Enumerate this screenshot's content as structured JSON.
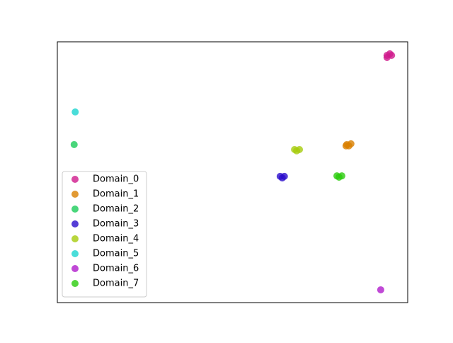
{
  "chart_data": {
    "type": "scatter",
    "xlim": [
      0,
      100
    ],
    "ylim": [
      0,
      100
    ],
    "legend": "lower left",
    "series": [
      {
        "name": "Domain_0",
        "color": "#d01a8c",
        "x": [
          94.1,
          94.9,
          95.4,
          94.1
        ],
        "values": [
          94.8,
          95.4,
          94.8,
          94.0
        ]
      },
      {
        "name": "Domain_1",
        "color": "#d98000",
        "x": [
          82.6,
          83.8,
          83.2,
          82.4
        ],
        "values": [
          60.6,
          60.9,
          60.1,
          60.1
        ]
      },
      {
        "name": "Domain_2",
        "color": "#1ccc5a",
        "x": [
          4.8
        ],
        "values": [
          60.6
        ]
      },
      {
        "name": "Domain_3",
        "color": "#2a0ccc",
        "x": [
          63.6,
          64.8,
          64.2
        ],
        "values": [
          48.4,
          48.4,
          47.8
        ]
      },
      {
        "name": "Domain_4",
        "color": "#a6cc0c",
        "x": [
          67.7,
          69.1,
          68.3
        ],
        "values": [
          58.7,
          58.7,
          58.2
        ]
      },
      {
        "name": "Domain_5",
        "color": "#1cd4d0",
        "x": [
          5.1
        ],
        "values": [
          73.1
        ]
      },
      {
        "name": "Domain_6",
        "color": "#b01ccc",
        "x": [
          92.3
        ],
        "values": [
          4.9
        ]
      },
      {
        "name": "Domain_7",
        "color": "#2acc0c",
        "x": [
          79.8,
          81.2,
          80.4
        ],
        "values": [
          48.6,
          48.6,
          48.1
        ]
      }
    ]
  }
}
